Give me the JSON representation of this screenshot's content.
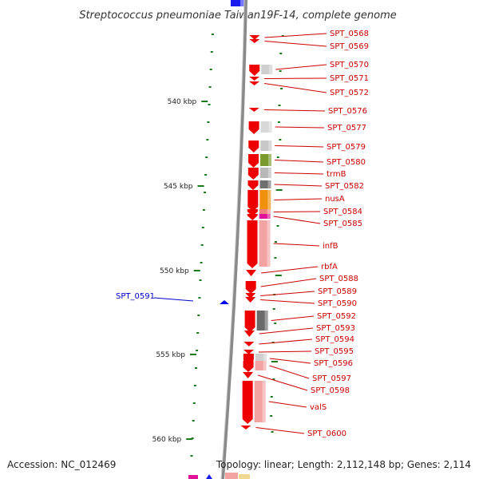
{
  "title": "Streptococcus pneumoniae Taiwan19F-14, complete genome",
  "footer": {
    "accession": "Accession: NC_012469",
    "topology": "Topology: linear; Length: 2,112,148 bp; Genes: 2,114"
  },
  "colors": {
    "plus_strand": "#ee0000",
    "minus_strand": "#0000ee",
    "label_plus": "#cc0000",
    "label_minus": "#0000cc",
    "gc_marker": "#1a7a1a",
    "backbone": "#888888"
  },
  "ticks": [
    {
      "label": "540 kbp"
    },
    {
      "label": "545 kbp"
    },
    {
      "label": "550 kbp"
    },
    {
      "label": "555 kbp"
    },
    {
      "label": "560 kbp"
    }
  ],
  "genes": [
    {
      "label": "SPT_0568",
      "strand": "+"
    },
    {
      "label": "SPT_0569",
      "strand": "+"
    },
    {
      "label": "SPT_0570",
      "strand": "+"
    },
    {
      "label": "SPT_0571",
      "strand": "+"
    },
    {
      "label": "SPT_0572",
      "strand": "+"
    },
    {
      "label": "SPT_0576",
      "strand": "+"
    },
    {
      "label": "SPT_0577",
      "strand": "+"
    },
    {
      "label": "SPT_0579",
      "strand": "+"
    },
    {
      "label": "SPT_0580",
      "strand": "+"
    },
    {
      "label": "trmB",
      "strand": "+"
    },
    {
      "label": "SPT_0582",
      "strand": "+"
    },
    {
      "label": "nusA",
      "strand": "+"
    },
    {
      "label": "SPT_0584",
      "strand": "+"
    },
    {
      "label": "SPT_0585",
      "strand": "+"
    },
    {
      "label": "infB",
      "strand": "+"
    },
    {
      "label": "rbfA",
      "strand": "+"
    },
    {
      "label": "SPT_0588",
      "strand": "+"
    },
    {
      "label": "SPT_0589",
      "strand": "+"
    },
    {
      "label": "SPT_0590",
      "strand": "+"
    },
    {
      "label": "SPT_0592",
      "strand": "+"
    },
    {
      "label": "SPT_0593",
      "strand": "+"
    },
    {
      "label": "SPT_0594",
      "strand": "+"
    },
    {
      "label": "SPT_0595",
      "strand": "+"
    },
    {
      "label": "SPT_0596",
      "strand": "+"
    },
    {
      "label": "SPT_0597",
      "strand": "+"
    },
    {
      "label": "SPT_0598",
      "strand": "+"
    },
    {
      "label": "valS",
      "strand": "+"
    },
    {
      "label": "SPT_0600",
      "strand": "+"
    },
    {
      "label": "SPT_0591",
      "strand": "-"
    }
  ]
}
